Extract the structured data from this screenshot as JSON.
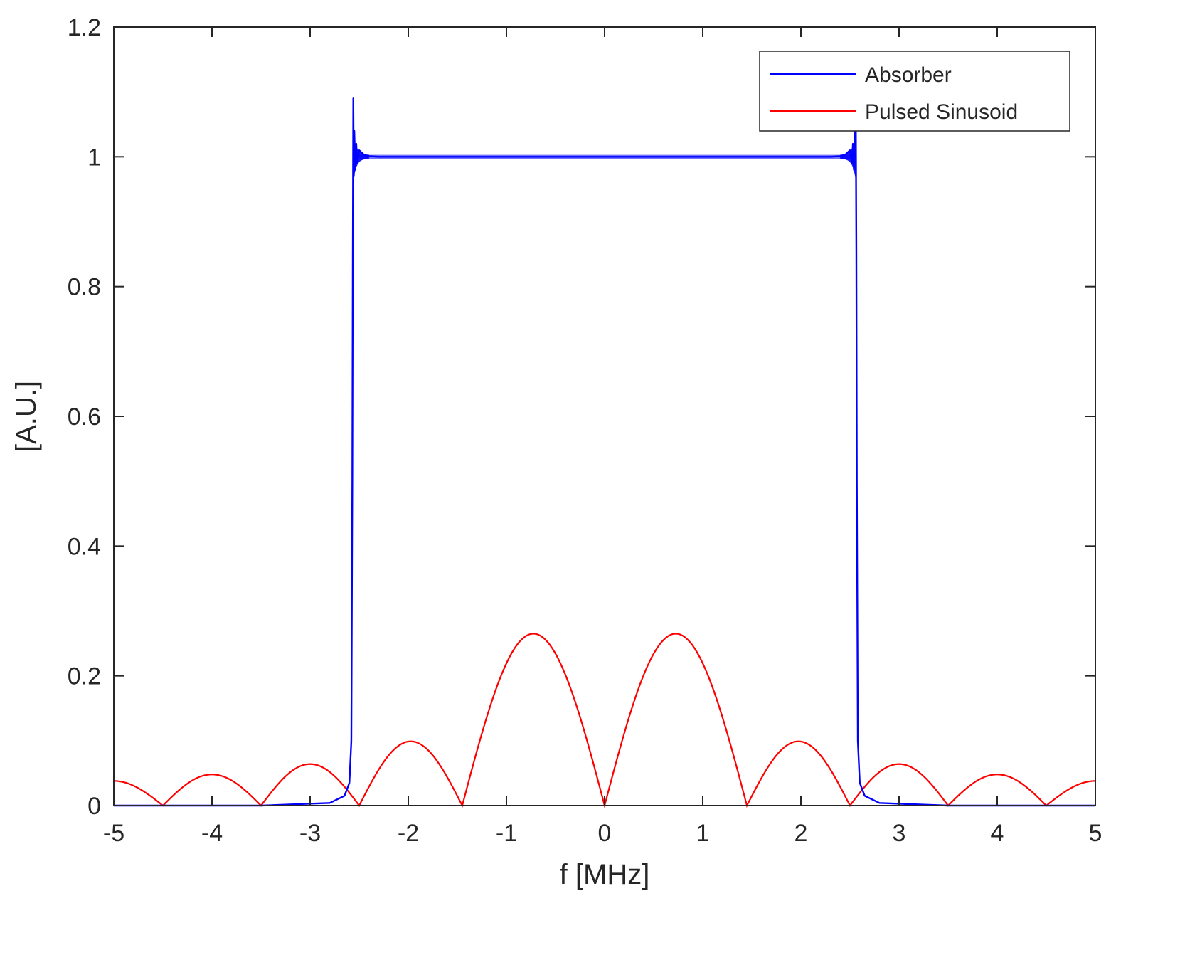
{
  "chart_data": {
    "type": "line",
    "title": "",
    "xlabel": "f [MHz]",
    "ylabel": "[A.U.]",
    "xlim": [
      -5,
      5
    ],
    "ylim": [
      0,
      1.2
    ],
    "xticks": [
      -5,
      -4,
      -3,
      -2,
      -1,
      0,
      1,
      2,
      3,
      4,
      5
    ],
    "yticks": [
      0,
      0.2,
      0.4,
      0.6,
      0.8,
      1,
      1.2
    ],
    "grid": false,
    "legend": {
      "position": "top-right",
      "entries": [
        "Absorber",
        "Pulsed Sinusoid"
      ]
    },
    "series": [
      {
        "name": "Absorber",
        "color": "#0000ff",
        "x": [
          -5,
          -3.5,
          -2.8,
          -2.65,
          -2.6,
          -2.58,
          -2.57,
          -2.565,
          -2.56,
          -2.555,
          -2.55,
          -2.54,
          -2.53,
          -2.52,
          -2.5,
          -2.45,
          -2.4,
          -2.3,
          -2.2,
          -2.0,
          -1.0,
          0,
          1.0,
          2.0,
          2.2,
          2.3,
          2.4,
          2.45,
          2.5,
          2.52,
          2.53,
          2.54,
          2.55,
          2.555,
          2.56,
          2.565,
          2.57,
          2.58,
          2.6,
          2.65,
          2.8,
          3.5,
          5
        ],
        "y": [
          0,
          0,
          0.004,
          0.015,
          0.035,
          0.1,
          0.5,
          0.85,
          1.09,
          0.97,
          1.04,
          0.98,
          1.02,
          0.99,
          1.01,
          1.003,
          1.001,
          1.0,
          1.0,
          1.0,
          1.0,
          1.0,
          1.0,
          1.0,
          1.0,
          1.0,
          1.001,
          1.003,
          1.01,
          0.99,
          1.02,
          0.98,
          1.04,
          1.03,
          1.04,
          0.85,
          0.5,
          0.1,
          0.035,
          0.015,
          0.004,
          0,
          0
        ]
      },
      {
        "name": "Pulsed Sinusoid",
        "color": "#ff0000",
        "lobes": [
          {
            "x_start": -5.0,
            "x_end": -4.5,
            "peak_x": -5.0,
            "peak_y": 0.038
          },
          {
            "x_start": -4.5,
            "x_end": -3.5,
            "peak_x": -4.0,
            "peak_y": 0.048
          },
          {
            "x_start": -3.5,
            "x_end": -2.5,
            "peak_x": -3.0,
            "peak_y": 0.064
          },
          {
            "x_start": -2.5,
            "x_end": -1.45,
            "peak_x": -1.95,
            "peak_y": 0.099
          },
          {
            "x_start": -1.45,
            "x_end": 0.0,
            "peak_x": -0.7,
            "peak_y": 0.265
          },
          {
            "x_start": 0.0,
            "x_end": 1.45,
            "peak_x": 0.7,
            "peak_y": 0.265
          },
          {
            "x_start": 1.45,
            "x_end": 2.5,
            "peak_x": 1.95,
            "peak_y": 0.099
          },
          {
            "x_start": 2.5,
            "x_end": 3.5,
            "peak_x": 3.0,
            "peak_y": 0.064
          },
          {
            "x_start": 3.5,
            "x_end": 4.5,
            "peak_x": 4.0,
            "peak_y": 0.048
          },
          {
            "x_start": 4.5,
            "x_end": 5.0,
            "peak_x": 5.0,
            "peak_y": 0.038
          }
        ]
      }
    ]
  }
}
